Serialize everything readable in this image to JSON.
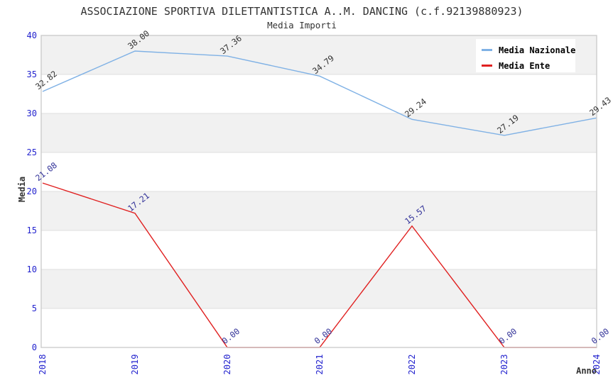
{
  "chart_data": {
    "type": "line",
    "title": "ASSOCIAZIONE SPORTIVA DILETTANTISTICA A..M. DANCING (c.f.92139880923)",
    "subtitle": "Media Importi",
    "xlabel": "Anno",
    "ylabel": "Media",
    "categories": [
      "2018",
      "2019",
      "2020",
      "2021",
      "2022",
      "2023",
      "2024"
    ],
    "series": [
      {
        "name": "Media Nazionale",
        "color": "#7FB1E5",
        "label_color": "#333333",
        "values": [
          32.82,
          38.0,
          37.36,
          34.79,
          29.24,
          27.19,
          29.43
        ]
      },
      {
        "name": "Media Ente",
        "color": "#E02020",
        "label_color": "#333399",
        "values": [
          21.08,
          17.21,
          0.0,
          0.0,
          15.57,
          0.0,
          0.0
        ]
      }
    ],
    "ylim": [
      0,
      40
    ],
    "ytick_step": 5,
    "legend_position": "top-right",
    "grid": "horizontal-bands",
    "colors": {
      "tick_label": "#2323CE",
      "band_gray": "#F1F1F1",
      "gridline": "#DFDFDF",
      "plot_border": "#CCCCCC",
      "title_text": "#333333"
    }
  }
}
